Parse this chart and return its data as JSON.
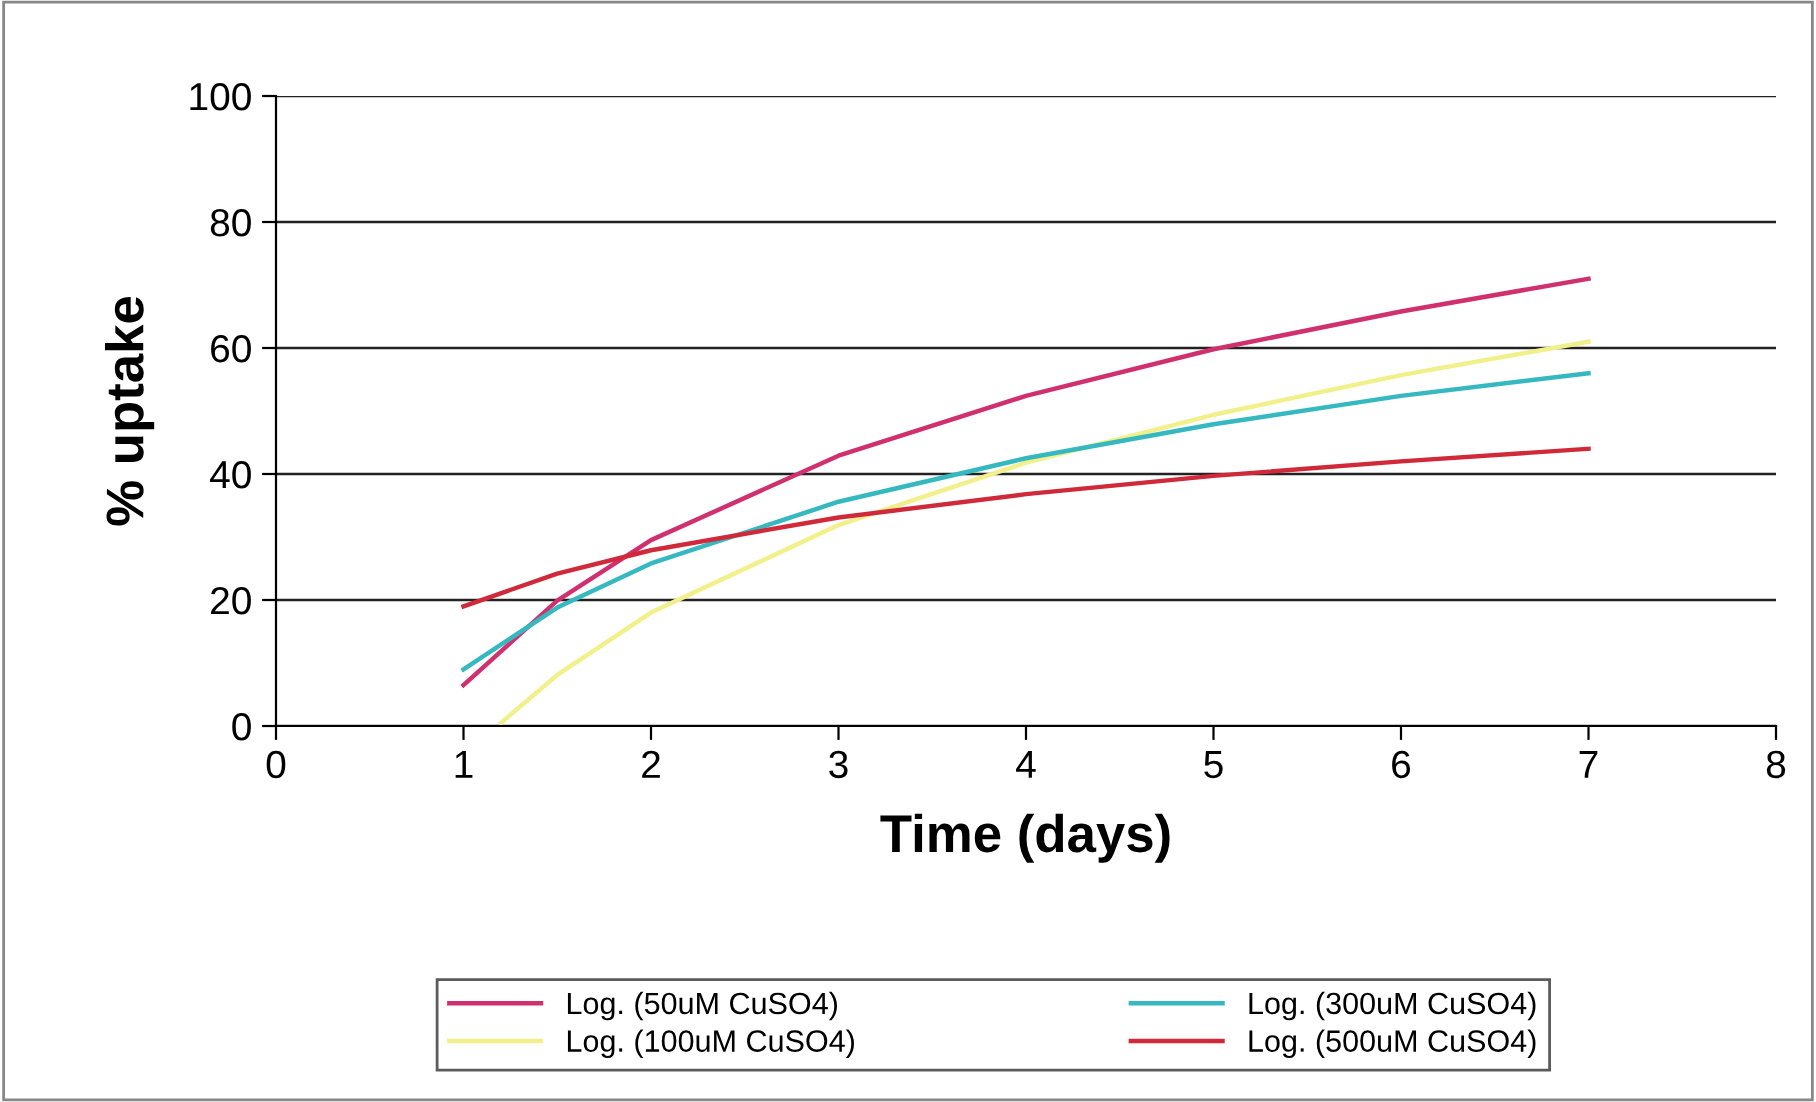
{
  "chart_data": {
    "type": "line",
    "xlabel": "Time (days)",
    "ylabel": "% uptake",
    "xlim": [
      0,
      8
    ],
    "xticks": [
      0,
      1,
      2,
      3,
      4,
      5,
      6,
      7,
      8
    ],
    "ylim": [
      0,
      100
    ],
    "yticks": [
      0,
      20,
      40,
      60,
      80,
      100
    ],
    "grid": "y",
    "legend": "bottom",
    "marker": "none",
    "line_style": "solid",
    "series": [
      {
        "name": "Log. (50uM CuSO4)",
        "color": "#d0306e",
        "x": [
          1,
          1.5,
          2,
          3,
          4,
          5,
          6,
          7
        ],
        "values": [
          6.5,
          19.9,
          29.5,
          42.9,
          52.4,
          59.8,
          65.8,
          71
        ]
      },
      {
        "name": "Log. (100uM CuSO4)",
        "color": "#f2f08a",
        "x": [
          1.2,
          1.5,
          2,
          3,
          4,
          5,
          6,
          7
        ],
        "values": [
          0.5,
          8.1,
          18,
          31.9,
          41.8,
          49.4,
          55.7,
          61
        ]
      },
      {
        "name": "Log. (300uM CuSO4)",
        "color": "#35b8c0",
        "x": [
          1,
          1.5,
          2,
          3,
          4,
          5,
          6,
          7
        ],
        "values": [
          9,
          18.8,
          25.8,
          35.6,
          42.5,
          47.9,
          52.4,
          56
        ]
      },
      {
        "name": "Log. (500uM CuSO4)",
        "color": "#d02a3a",
        "x": [
          1,
          1.5,
          2,
          3,
          4,
          5,
          6,
          7
        ],
        "values": [
          19,
          24.2,
          27.9,
          33.1,
          36.8,
          39.7,
          42,
          44
        ]
      }
    ]
  }
}
